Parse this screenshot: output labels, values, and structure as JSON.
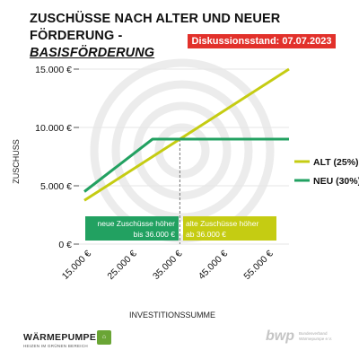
{
  "header": {
    "title_line1": "ZUSCHÜSSE NACH ALTER UND NEUER FÖRDERUNG -",
    "title_line2": "BASISFÖRDERUNG",
    "badge": "Diskussionsstand: 07.07.2023"
  },
  "chart_data": {
    "type": "line",
    "xlabel": "INVESTITIONSSUMME",
    "ylabel": "ZUSCHUSS",
    "xlim": [
      15000,
      60000
    ],
    "ylim": [
      0,
      16000
    ],
    "x_tick_labels": [
      "15.000 €",
      "25.000 €",
      "35.000 €",
      "45.000 €",
      "55.000 €"
    ],
    "x_tick_values": [
      15000,
      25000,
      35000,
      45000,
      55000
    ],
    "y_tick_labels": [
      "0 €",
      "5.000 €",
      "10.000 €",
      "15.000 €"
    ],
    "y_tick_values": [
      0,
      5000,
      10000,
      15000
    ],
    "series": [
      {
        "name": "ALT (25%)",
        "color": "#c5cc12",
        "x": [
          15000,
          60000
        ],
        "y": [
          3750,
          15000
        ]
      },
      {
        "name": "NEU (30%)",
        "color": "#22a161",
        "x": [
          15000,
          30000,
          36000,
          60000
        ],
        "y": [
          4500,
          9000,
          9000,
          9000
        ]
      }
    ],
    "crossover_x": 36000,
    "annotations": [
      {
        "series_color": "#22a161",
        "line1": "neue Zuschüsse höher",
        "line2": "bis 36.000 €"
      },
      {
        "series_color": "#c5cc12",
        "line1": "alte Zuschüsse höher",
        "line2": "ab 36.000 €"
      }
    ],
    "legend": "right"
  },
  "footer": {
    "logo_main": "WÄRMEPUMPE",
    "logo_sub": "HEIZEN IM GRÜNEN BEREICH",
    "bwp_main": "bwp",
    "bwp_sub": "Bundesverband Wärmepumpe e.V."
  }
}
